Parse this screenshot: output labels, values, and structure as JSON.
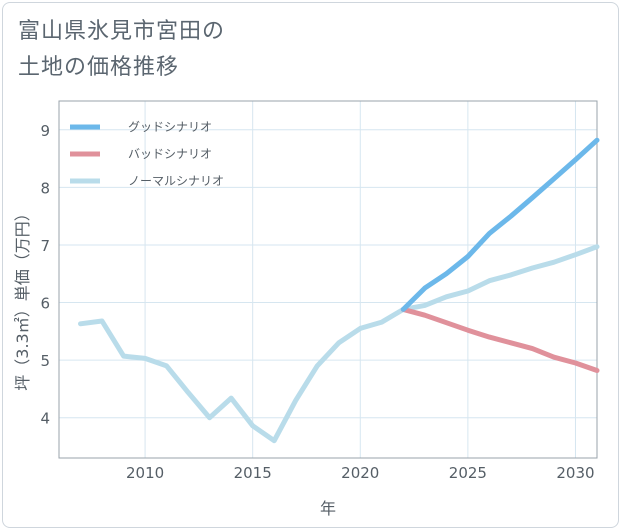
{
  "title_line1": "富山県氷見市宮田の",
  "title_line2": "土地の価格推移",
  "chart_data": {
    "type": "line",
    "title": "富山県氷見市宮田の土地の価格推移",
    "xlabel": "年",
    "ylabel": "坪（3.3㎡）単価（万円）",
    "xlim": [
      2006,
      2031
    ],
    "ylim": [
      3.3,
      9.5
    ],
    "xticks": [
      2010,
      2015,
      2020,
      2025,
      2030
    ],
    "yticks": [
      4,
      5,
      6,
      7,
      8,
      9
    ],
    "grid": true,
    "legend_position": "top-left",
    "series": [
      {
        "name": "グッドシナリオ",
        "color": "#6cb8ea",
        "x": [
          2022,
          2023,
          2024,
          2025,
          2026,
          2027,
          2028,
          2029,
          2030,
          2031
        ],
        "y": [
          5.88,
          6.25,
          6.5,
          6.8,
          7.2,
          7.5,
          7.82,
          8.15,
          8.48,
          8.82
        ]
      },
      {
        "name": "バッドシナリオ",
        "color": "#e0919b",
        "x": [
          2022,
          2023,
          2024,
          2025,
          2026,
          2027,
          2028,
          2029,
          2030,
          2031
        ],
        "y": [
          5.88,
          5.78,
          5.65,
          5.52,
          5.4,
          5.3,
          5.2,
          5.05,
          4.95,
          4.82
        ]
      },
      {
        "name": "ノーマルシナリオ",
        "color": "#b9dcea",
        "x": [
          2007,
          2008,
          2009,
          2010,
          2011,
          2012,
          2013,
          2014,
          2015,
          2016,
          2017,
          2018,
          2019,
          2020,
          2021,
          2022,
          2023,
          2024,
          2025,
          2026,
          2027,
          2028,
          2029,
          2030,
          2031
        ],
        "y": [
          5.63,
          5.68,
          5.07,
          5.03,
          4.9,
          4.44,
          4.0,
          4.34,
          3.86,
          3.6,
          4.3,
          4.9,
          5.3,
          5.55,
          5.66,
          5.88,
          5.95,
          6.1,
          6.2,
          6.38,
          6.48,
          6.6,
          6.7,
          6.83,
          6.97
        ]
      }
    ]
  }
}
